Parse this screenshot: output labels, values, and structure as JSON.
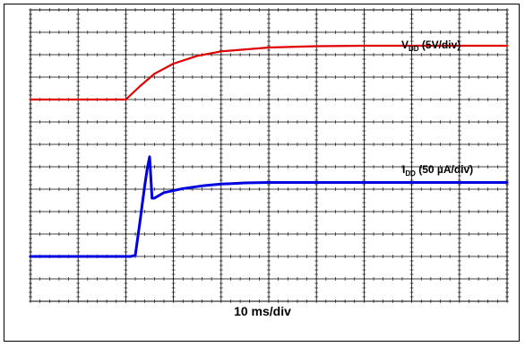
{
  "chart_data": {
    "type": "line",
    "title": "",
    "xlabel": "10 ms/div",
    "ylabel": "",
    "grid": true,
    "x_divisions": 10,
    "y_divisions": 13,
    "series": [
      {
        "name": "VDD (5V/div)",
        "label_main": "V",
        "label_sub": "DD",
        "label_rest": " (5V/div)",
        "color": "#e00000",
        "points": [
          [
            0,
            9.0
          ],
          [
            2.0,
            9.0
          ],
          [
            2.3,
            9.6
          ],
          [
            2.6,
            10.15
          ],
          [
            3.0,
            10.6
          ],
          [
            3.5,
            10.95
          ],
          [
            4.0,
            11.15
          ],
          [
            5.0,
            11.32
          ],
          [
            6.0,
            11.38
          ],
          [
            7.0,
            11.4
          ],
          [
            10.0,
            11.4
          ]
        ]
      },
      {
        "name": "IDD (50 µA/div)",
        "label_main": "I",
        "label_sub": "DD",
        "label_rest": " (50 µA/div)",
        "color": "#0000e0",
        "points": [
          [
            0,
            2.0
          ],
          [
            2.1,
            2.0
          ],
          [
            2.2,
            2.05
          ],
          [
            2.3,
            3.6
          ],
          [
            2.35,
            4.4
          ],
          [
            2.4,
            5.2
          ],
          [
            2.45,
            5.9
          ],
          [
            2.5,
            6.45
          ],
          [
            2.55,
            4.6
          ],
          [
            2.6,
            4.6
          ],
          [
            2.8,
            4.85
          ],
          [
            3.2,
            5.03
          ],
          [
            3.6,
            5.15
          ],
          [
            4.0,
            5.23
          ],
          [
            4.5,
            5.28
          ],
          [
            5.0,
            5.3
          ],
          [
            10.0,
            5.3
          ]
        ]
      }
    ]
  }
}
